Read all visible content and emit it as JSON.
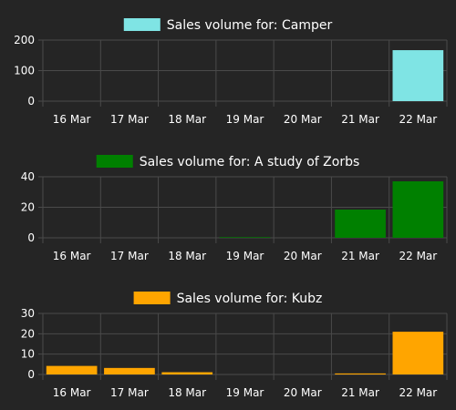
{
  "chart_data": [
    {
      "type": "bar",
      "legend": "Sales volume for: Camper",
      "color": "#7fe4e4",
      "categories": [
        "16 Mar",
        "17 Mar",
        "18 Mar",
        "19 Mar",
        "20 Mar",
        "21 Mar",
        "22 Mar"
      ],
      "values": [
        0,
        0,
        0,
        0,
        0,
        0,
        167
      ],
      "ylim": [
        0,
        200
      ],
      "yticks": [
        0,
        100,
        200
      ],
      "grid": true,
      "legend_position": "top-center"
    },
    {
      "type": "bar",
      "legend": "Sales volume for: A study of Zorbs",
      "color": "#008000",
      "categories": [
        "16 Mar",
        "17 Mar",
        "18 Mar",
        "19 Mar",
        "20 Mar",
        "21 Mar",
        "22 Mar"
      ],
      "values": [
        0,
        0,
        0,
        0.4,
        0,
        18.5,
        37
      ],
      "ylim": [
        0,
        40
      ],
      "yticks": [
        0,
        20,
        40
      ],
      "grid": true,
      "legend_position": "top-center"
    },
    {
      "type": "bar",
      "legend": "Sales volume for: Kubz",
      "color": "#ffa500",
      "categories": [
        "16 Mar",
        "17 Mar",
        "18 Mar",
        "19 Mar",
        "20 Mar",
        "21 Mar",
        "22 Mar"
      ],
      "values": [
        4.2,
        3.2,
        1.1,
        0,
        0,
        0.5,
        21
      ],
      "ylim": [
        0,
        30
      ],
      "yticks": [
        0,
        10,
        20,
        30
      ],
      "grid": true,
      "legend_position": "top-center"
    }
  ]
}
